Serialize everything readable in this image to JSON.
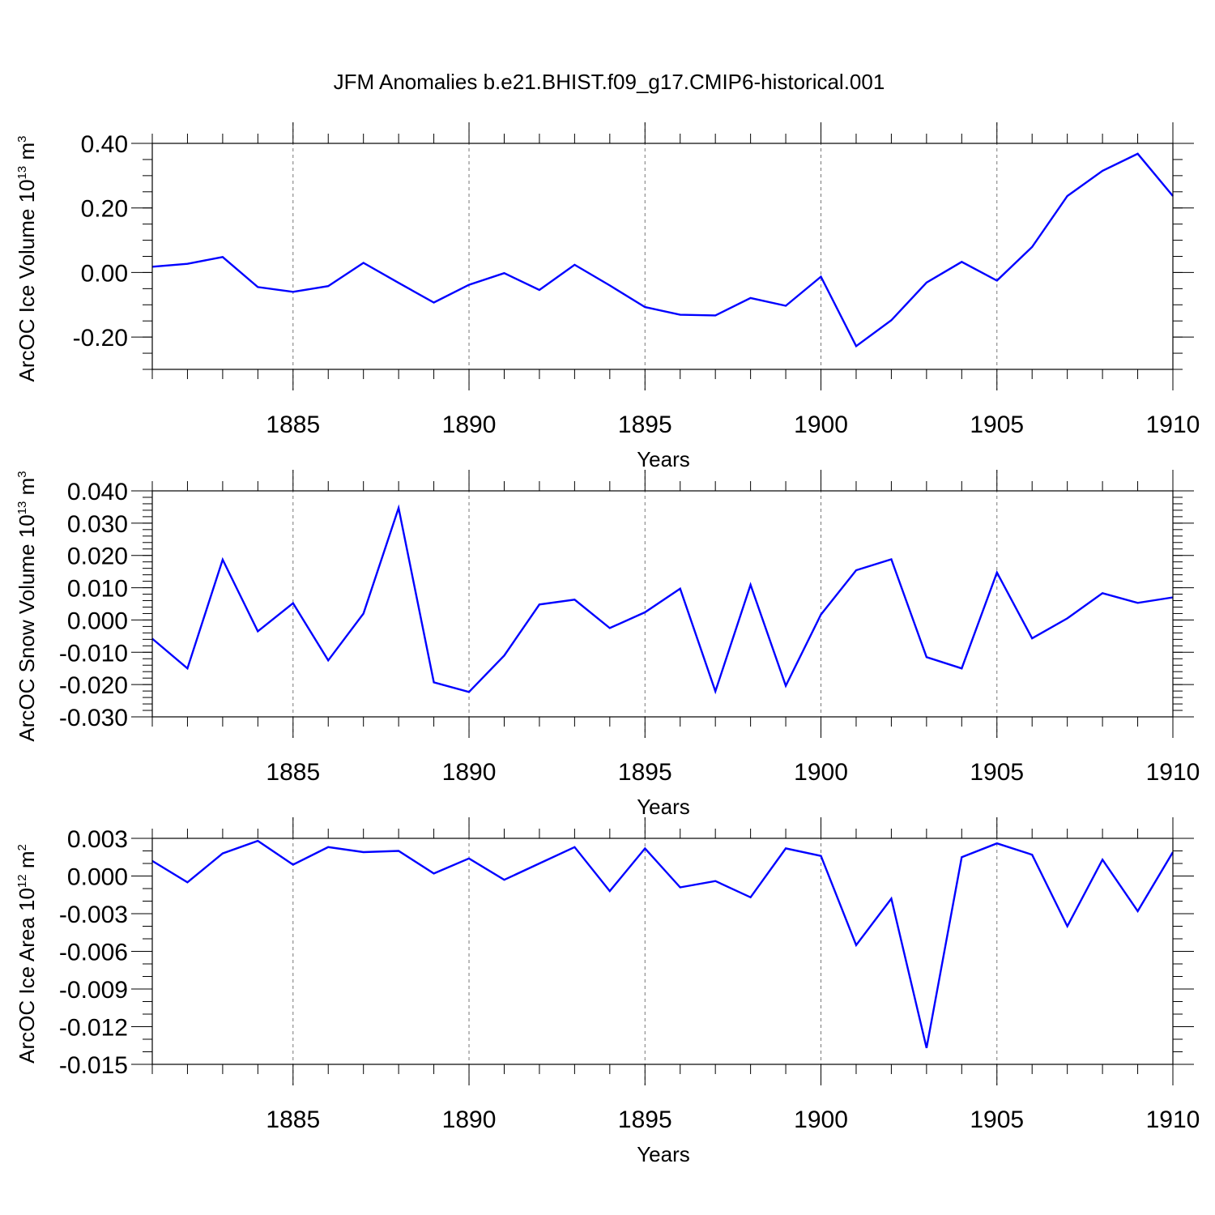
{
  "title": "JFM Anomalies b.e21.BHIST.f09_g17.CMIP6-historical.001",
  "chart_data": [
    {
      "type": "line",
      "title": "JFM Anomalies b.e21.BHIST.f09_g17.CMIP6-historical.001",
      "xlabel": "Years",
      "ylabel": "ArcOC Ice Volume 10",
      "ylabel_sup": "13",
      "ylabel_unit": " m",
      "ylabel_unit_sup": "3",
      "xlim": [
        1881,
        1910
      ],
      "ylim": [
        -0.3,
        0.4
      ],
      "x_ticks": [
        1885,
        1890,
        1895,
        1900,
        1905,
        1910
      ],
      "x_tick_labels": [
        "1885",
        "1890",
        "1895",
        "1900",
        "1905",
        "1910"
      ],
      "y_ticks": [
        -0.2,
        0.0,
        0.2,
        0.4
      ],
      "y_tick_labels": [
        "-0.20",
        "0.00",
        "0.20",
        "0.40"
      ],
      "y_minor_step": 0.05,
      "color": "#0000ff",
      "x": [
        1881,
        1882,
        1883,
        1884,
        1885,
        1886,
        1887,
        1888,
        1889,
        1890,
        1891,
        1892,
        1893,
        1894,
        1895,
        1896,
        1897,
        1898,
        1899,
        1900,
        1901,
        1902,
        1903,
        1904,
        1905,
        1906,
        1907,
        1908,
        1909,
        1910
      ],
      "values": [
        0.018,
        0.027,
        0.048,
        -0.045,
        -0.06,
        -0.042,
        0.03,
        -0.032,
        -0.093,
        -0.038,
        -0.002,
        -0.054,
        0.024,
        -0.04,
        -0.107,
        -0.131,
        -0.133,
        -0.079,
        -0.103,
        -0.013,
        -0.228,
        -0.148,
        -0.031,
        0.033,
        -0.025,
        0.079,
        0.237,
        0.315,
        0.368,
        0.237
      ]
    },
    {
      "type": "line",
      "xlabel": "Years",
      "ylabel": "ArcOC Snow Volume 10",
      "ylabel_sup": "13",
      "ylabel_unit": " m",
      "ylabel_unit_sup": "3",
      "xlim": [
        1881,
        1910
      ],
      "ylim": [
        -0.03,
        0.04
      ],
      "x_ticks": [
        1885,
        1890,
        1895,
        1900,
        1905,
        1910
      ],
      "x_tick_labels": [
        "1885",
        "1890",
        "1895",
        "1900",
        "1905",
        "1910"
      ],
      "y_ticks": [
        -0.03,
        -0.02,
        -0.01,
        0.0,
        0.01,
        0.02,
        0.03,
        0.04
      ],
      "y_tick_labels": [
        "-0.030",
        "-0.020",
        "-0.010",
        "0.000",
        "0.010",
        "0.020",
        "0.030",
        "0.040"
      ],
      "y_minor_step": 0.002,
      "color": "#0000ff",
      "x": [
        1881,
        1882,
        1883,
        1884,
        1885,
        1886,
        1887,
        1888,
        1889,
        1890,
        1891,
        1892,
        1893,
        1894,
        1895,
        1896,
        1897,
        1898,
        1899,
        1900,
        1901,
        1902,
        1903,
        1904,
        1905,
        1906,
        1907,
        1908,
        1909,
        1910
      ],
      "values": [
        -0.0058,
        -0.015,
        0.0187,
        -0.0035,
        0.0052,
        -0.0125,
        0.002,
        0.0347,
        -0.0193,
        -0.0223,
        -0.011,
        0.0048,
        0.0063,
        -0.0025,
        0.0024,
        0.0097,
        -0.0221,
        0.0109,
        -0.0204,
        0.0017,
        0.0154,
        0.0188,
        -0.0115,
        -0.015,
        0.0147,
        -0.0057,
        0.0005,
        0.0083,
        0.0053,
        0.007
      ]
    },
    {
      "type": "line",
      "xlabel": "Years",
      "ylabel": "ArcOC Ice Area 10",
      "ylabel_sup": "12",
      "ylabel_unit": " m",
      "ylabel_unit_sup": "2",
      "xlim": [
        1881,
        1910
      ],
      "ylim": [
        -0.015,
        0.003
      ],
      "x_ticks": [
        1885,
        1890,
        1895,
        1900,
        1905,
        1910
      ],
      "x_tick_labels": [
        "1885",
        "1890",
        "1895",
        "1900",
        "1905",
        "1910"
      ],
      "y_ticks": [
        -0.015,
        -0.012,
        -0.009,
        -0.006,
        -0.003,
        0.0,
        0.003
      ],
      "y_tick_labels": [
        "-0.015",
        "-0.012",
        "-0.009",
        "-0.006",
        "-0.003",
        "0.000",
        "0.003"
      ],
      "y_minor_step": 0.001,
      "color": "#0000ff",
      "x": [
        1881,
        1882,
        1883,
        1884,
        1885,
        1886,
        1887,
        1888,
        1889,
        1890,
        1891,
        1892,
        1893,
        1894,
        1895,
        1896,
        1897,
        1898,
        1899,
        1900,
        1901,
        1902,
        1903,
        1904,
        1905,
        1906,
        1907,
        1908,
        1909,
        1910
      ],
      "values": [
        0.0012,
        -0.0005,
        0.0018,
        0.0028,
        0.0009,
        0.0023,
        0.0019,
        0.002,
        0.0002,
        0.0014,
        -0.0003,
        0.001,
        0.0023,
        -0.0012,
        0.0022,
        -0.0009,
        -0.0004,
        -0.0017,
        0.0022,
        0.0016,
        -0.0055,
        -0.0018,
        -0.0137,
        0.0015,
        0.0026,
        0.0017,
        -0.004,
        0.0013,
        -0.0028,
        0.0019
      ]
    }
  ]
}
